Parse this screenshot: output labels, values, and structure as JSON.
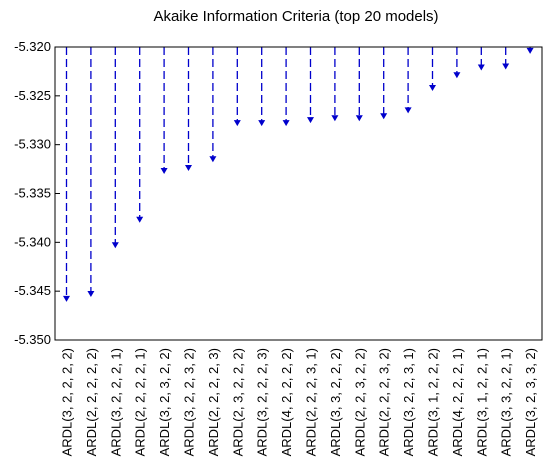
{
  "chart_data": {
    "type": "line",
    "title": "Akaike Information Criteria (top 20 models)",
    "xlabel": "",
    "ylabel": "",
    "ylim": [
      -5.35,
      -5.32
    ],
    "y_ticks": [
      "-5.320",
      "-5.325",
      "-5.330",
      "-5.335",
      "-5.340",
      "-5.345",
      "-5.350"
    ],
    "y_tick_values": [
      -5.32,
      -5.325,
      -5.33,
      -5.335,
      -5.34,
      -5.345,
      -5.35
    ],
    "grid": false,
    "legend": "none",
    "style": "dashed drop lines from top axis with arrowheads",
    "color": "#0000cc",
    "categories": [
      "ARDL(3, 2, 2, 2, 2)",
      "ARDL(2, 2, 2, 2, 2)",
      "ARDL(3, 2, 2, 2, 1)",
      "ARDL(2, 2, 2, 2, 1)",
      "ARDL(3, 2, 3, 2, 2)",
      "ARDL(3, 2, 2, 3, 2)",
      "ARDL(2, 2, 2, 2, 3)",
      "ARDL(2, 3, 2, 2, 2)",
      "ARDL(3, 2, 2, 2, 3)",
      "ARDL(4, 2, 2, 2, 2)",
      "ARDL(2, 2, 2, 3, 1)",
      "ARDL(3, 3, 2, 2, 2)",
      "ARDL(2, 2, 3, 2, 2)",
      "ARDL(2, 2, 2, 3, 2)",
      "ARDL(3, 2, 2, 3, 1)",
      "ARDL(3, 1, 2, 2, 2)",
      "ARDL(4, 2, 2, 2, 1)",
      "ARDL(3, 1, 2, 2, 1)",
      "ARDL(3, 3, 2, 2, 1)",
      "ARDL(3, 2, 3, 3, 2)"
    ],
    "values": [
      -5.3461,
      -5.3456,
      -5.3406,
      -5.338,
      -5.333,
      -5.3327,
      -5.3318,
      -5.3281,
      -5.3281,
      -5.3281,
      -5.3278,
      -5.3276,
      -5.3276,
      -5.3274,
      -5.3268,
      -5.3245,
      -5.3232,
      -5.3224,
      -5.3223,
      -5.3207
    ]
  }
}
